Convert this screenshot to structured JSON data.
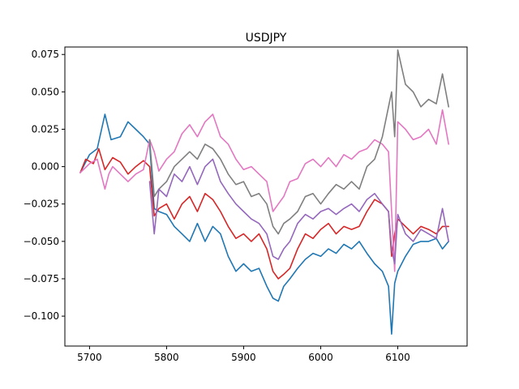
{
  "chart_data": {
    "type": "line",
    "title": "USDJPY",
    "xlabel": "",
    "ylabel": "",
    "xlim": [
      5668,
      6190
    ],
    "ylim": [
      -0.12,
      0.08
    ],
    "xticks": [
      5700,
      5800,
      5900,
      6000,
      6100
    ],
    "xtick_labels": [
      "5700",
      "5800",
      "5900",
      "6000",
      "6100"
    ],
    "yticks": [
      -0.1,
      -0.075,
      -0.05,
      -0.025,
      0.0,
      0.025,
      0.05,
      0.075
    ],
    "ytick_labels": [
      "−0.100",
      "−0.075",
      "−0.050",
      "−0.025",
      "0.000",
      "0.025",
      "0.050",
      "0.075"
    ],
    "grid": false,
    "series": [
      {
        "color": "#1f77b4",
        "x": [
          5688,
          5700,
          5710,
          5720,
          5728,
          5740,
          5750,
          5760,
          5770,
          5778,
          5784,
          5790,
          5800,
          5810,
          5820,
          5830,
          5840,
          5850,
          5860,
          5870,
          5880,
          5890,
          5900,
          5910,
          5920,
          5930,
          5938,
          5945,
          5952,
          5960,
          5970,
          5980,
          5990,
          6000,
          6010,
          6020,
          6030,
          6040,
          6050,
          6060,
          6070,
          6080,
          6088,
          6092,
          6096,
          6100,
          6110,
          6120,
          6130,
          6140,
          6150,
          6158,
          6166
        ],
        "y": [
          -0.004,
          0.008,
          0.012,
          0.035,
          0.018,
          0.02,
          0.03,
          0.025,
          0.02,
          0.015,
          -0.028,
          -0.03,
          -0.032,
          -0.04,
          -0.045,
          -0.05,
          -0.038,
          -0.05,
          -0.04,
          -0.045,
          -0.06,
          -0.07,
          -0.065,
          -0.07,
          -0.068,
          -0.08,
          -0.088,
          -0.09,
          -0.08,
          -0.075,
          -0.068,
          -0.062,
          -0.058,
          -0.06,
          -0.055,
          -0.058,
          -0.052,
          -0.055,
          -0.05,
          -0.058,
          -0.065,
          -0.07,
          -0.08,
          -0.112,
          -0.078,
          -0.07,
          -0.06,
          -0.052,
          -0.05,
          -0.05,
          -0.048,
          -0.055,
          -0.05
        ]
      },
      {
        "color": "#d62728",
        "x": [
          5688,
          5695,
          5705,
          5712,
          5720,
          5730,
          5740,
          5750,
          5760,
          5770,
          5778,
          5784,
          5790,
          5800,
          5810,
          5820,
          5830,
          5840,
          5850,
          5860,
          5870,
          5880,
          5890,
          5900,
          5910,
          5920,
          5930,
          5938,
          5945,
          5952,
          5960,
          5970,
          5980,
          5990,
          6000,
          6010,
          6020,
          6030,
          6040,
          6050,
          6060,
          6070,
          6080,
          6088,
          6092,
          6096,
          6100,
          6110,
          6120,
          6130,
          6140,
          6150,
          6158,
          6166
        ],
        "y": [
          -0.004,
          0.005,
          0.002,
          0.012,
          -0.002,
          0.006,
          0.003,
          -0.005,
          0.0,
          0.004,
          0.0,
          -0.033,
          -0.028,
          -0.025,
          -0.035,
          -0.025,
          -0.02,
          -0.03,
          -0.018,
          -0.022,
          -0.03,
          -0.04,
          -0.048,
          -0.045,
          -0.05,
          -0.045,
          -0.055,
          -0.07,
          -0.075,
          -0.072,
          -0.068,
          -0.055,
          -0.045,
          -0.048,
          -0.042,
          -0.038,
          -0.045,
          -0.04,
          -0.042,
          -0.04,
          -0.03,
          -0.022,
          -0.025,
          -0.03,
          -0.06,
          -0.045,
          -0.035,
          -0.04,
          -0.045,
          -0.04,
          -0.042,
          -0.045,
          -0.04,
          -0.04
        ]
      },
      {
        "color": "#e377c2",
        "x": [
          5688,
          5700,
          5710,
          5720,
          5725,
          5730,
          5740,
          5750,
          5760,
          5770,
          5778,
          5784,
          5790,
          5800,
          5810,
          5820,
          5830,
          5840,
          5850,
          5860,
          5870,
          5880,
          5890,
          5900,
          5910,
          5920,
          5930,
          5938,
          5945,
          5952,
          5960,
          5970,
          5980,
          5990,
          6000,
          6010,
          6020,
          6030,
          6040,
          6050,
          6060,
          6070,
          6080,
          6088,
          6092,
          6096,
          6100,
          6110,
          6120,
          6130,
          6140,
          6150,
          6158,
          6166
        ],
        "y": [
          -0.004,
          0.002,
          0.005,
          -0.015,
          -0.005,
          0.0,
          -0.005,
          -0.01,
          -0.005,
          -0.002,
          0.018,
          0.01,
          -0.003,
          0.005,
          0.01,
          0.022,
          0.028,
          0.02,
          0.03,
          0.035,
          0.02,
          0.015,
          0.005,
          -0.002,
          0.0,
          -0.005,
          -0.01,
          -0.03,
          -0.025,
          -0.02,
          -0.01,
          -0.008,
          0.002,
          0.005,
          0.0,
          0.006,
          0.0,
          0.008,
          0.005,
          0.01,
          0.012,
          0.018,
          0.015,
          0.01,
          -0.03,
          -0.07,
          0.03,
          0.025,
          0.018,
          0.02,
          0.025,
          0.015,
          0.038,
          0.015
        ]
      },
      {
        "color": "#7f7f7f",
        "x": [
          5778,
          5784,
          5790,
          5800,
          5810,
          5820,
          5830,
          5840,
          5850,
          5860,
          5870,
          5880,
          5890,
          5900,
          5910,
          5920,
          5930,
          5938,
          5945,
          5952,
          5960,
          5970,
          5980,
          5990,
          6000,
          6010,
          6020,
          6030,
          6040,
          6050,
          6060,
          6070,
          6080,
          6088,
          6092,
          6096,
          6100,
          6110,
          6120,
          6130,
          6140,
          6150,
          6158,
          6166
        ],
        "y": [
          0.018,
          -0.02,
          -0.015,
          -0.01,
          0.0,
          0.005,
          0.01,
          0.005,
          0.015,
          0.012,
          0.005,
          -0.005,
          -0.012,
          -0.01,
          -0.02,
          -0.018,
          -0.025,
          -0.04,
          -0.045,
          -0.038,
          -0.035,
          -0.03,
          -0.02,
          -0.018,
          -0.025,
          -0.018,
          -0.012,
          -0.015,
          -0.01,
          -0.015,
          0.0,
          0.005,
          0.02,
          0.04,
          0.05,
          0.02,
          0.078,
          0.055,
          0.05,
          0.04,
          0.045,
          0.042,
          0.062,
          0.04
        ]
      },
      {
        "color": "#9467bd",
        "x": [
          5778,
          5784,
          5790,
          5800,
          5810,
          5820,
          5830,
          5840,
          5850,
          5860,
          5870,
          5880,
          5890,
          5900,
          5910,
          5920,
          5930,
          5938,
          5945,
          5952,
          5960,
          5970,
          5980,
          5990,
          6000,
          6010,
          6020,
          6030,
          6040,
          6050,
          6060,
          6070,
          6080,
          6088,
          6092,
          6096,
          6100,
          6110,
          6120,
          6130,
          6140,
          6150,
          6158,
          6166
        ],
        "y": [
          -0.01,
          -0.045,
          -0.015,
          -0.02,
          -0.005,
          -0.01,
          0.0,
          -0.012,
          0.0,
          0.005,
          -0.01,
          -0.018,
          -0.025,
          -0.03,
          -0.035,
          -0.038,
          -0.045,
          -0.06,
          -0.062,
          -0.055,
          -0.05,
          -0.038,
          -0.032,
          -0.035,
          -0.03,
          -0.028,
          -0.032,
          -0.028,
          -0.025,
          -0.03,
          -0.022,
          -0.018,
          -0.025,
          -0.03,
          -0.055,
          -0.065,
          -0.032,
          -0.045,
          -0.05,
          -0.042,
          -0.045,
          -0.048,
          -0.028,
          -0.05
        ]
      }
    ]
  }
}
